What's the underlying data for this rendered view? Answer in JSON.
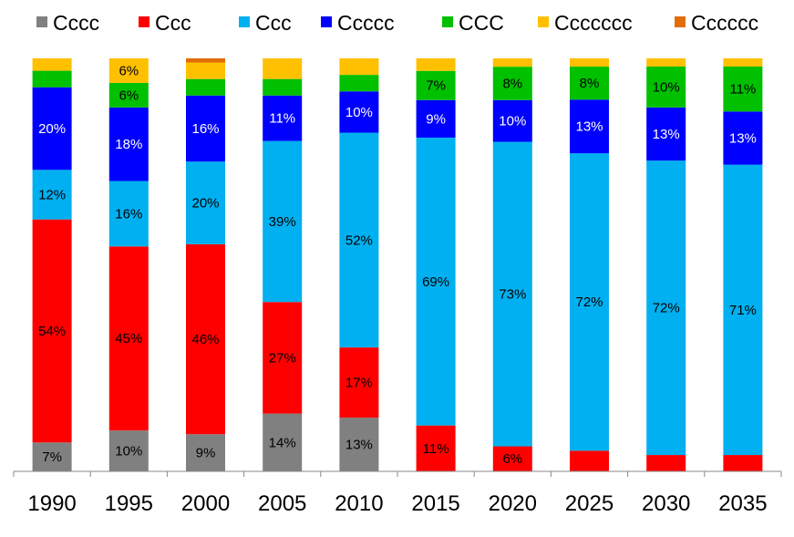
{
  "chart_data": {
    "type": "bar",
    "stacked": true,
    "normalized": true,
    "categories": [
      "1990",
      "1995",
      "2000",
      "2005",
      "2010",
      "2015",
      "2020",
      "2025",
      "2030",
      "2035"
    ],
    "ylim": [
      0,
      100
    ],
    "grid": false,
    "legend_position": "top",
    "series": [
      {
        "name": "Cccc",
        "color": "#808080",
        "values": [
          7,
          10,
          9,
          14,
          13,
          0,
          0,
          0,
          0,
          0
        ],
        "labels": [
          "7%",
          "10%",
          "9%",
          "14%",
          "13%",
          "",
          "",
          "",
          "",
          ""
        ]
      },
      {
        "name": "Ccc",
        "color": "#ff0000",
        "values": [
          54,
          45,
          46,
          27,
          17,
          11,
          6,
          5,
          4,
          4
        ],
        "labels": [
          "54%",
          "45%",
          "46%",
          "27%",
          "17%",
          "11%",
          "6%",
          "",
          "",
          ""
        ]
      },
      {
        "name": "Ccc",
        "color": "#00b0f0",
        "values": [
          12,
          16,
          20,
          39,
          52,
          69,
          73,
          72,
          72,
          71
        ],
        "labels": [
          "12%",
          "16%",
          "20%",
          "39%",
          "52%",
          "69%",
          "73%",
          "72%",
          "72%",
          "71%"
        ]
      },
      {
        "name": "Ccccc",
        "color": "#0000ff",
        "values": [
          20,
          18,
          16,
          11,
          10,
          9,
          10,
          13,
          13,
          13
        ],
        "labels": [
          "20%",
          "18%",
          "16%",
          "11%",
          "10%",
          "9%",
          "10%",
          "13%",
          "13%",
          "13%"
        ]
      },
      {
        "name": "CCC",
        "color": "#00c000",
        "values": [
          4,
          6,
          4,
          4,
          4,
          7,
          8,
          8,
          10,
          11
        ],
        "labels": [
          "",
          "6%",
          "",
          "",
          "",
          "7%",
          "8%",
          "8%",
          "10%",
          "11%"
        ]
      },
      {
        "name": "Ccccccc",
        "color": "#ffc000",
        "values": [
          3,
          6,
          4,
          5,
          4,
          3,
          2,
          2,
          2,
          2
        ],
        "labels": [
          "",
          "6%",
          "",
          "",
          "",
          "",
          "",
          "",
          "",
          ""
        ]
      },
      {
        "name": "Cccccc",
        "color": "#e36c09",
        "values": [
          0,
          0,
          1,
          0,
          0,
          0,
          0,
          0,
          0,
          0
        ],
        "labels": [
          "",
          "",
          "",
          "",
          "",
          "",
          "",
          "",
          "",
          ""
        ]
      }
    ]
  }
}
